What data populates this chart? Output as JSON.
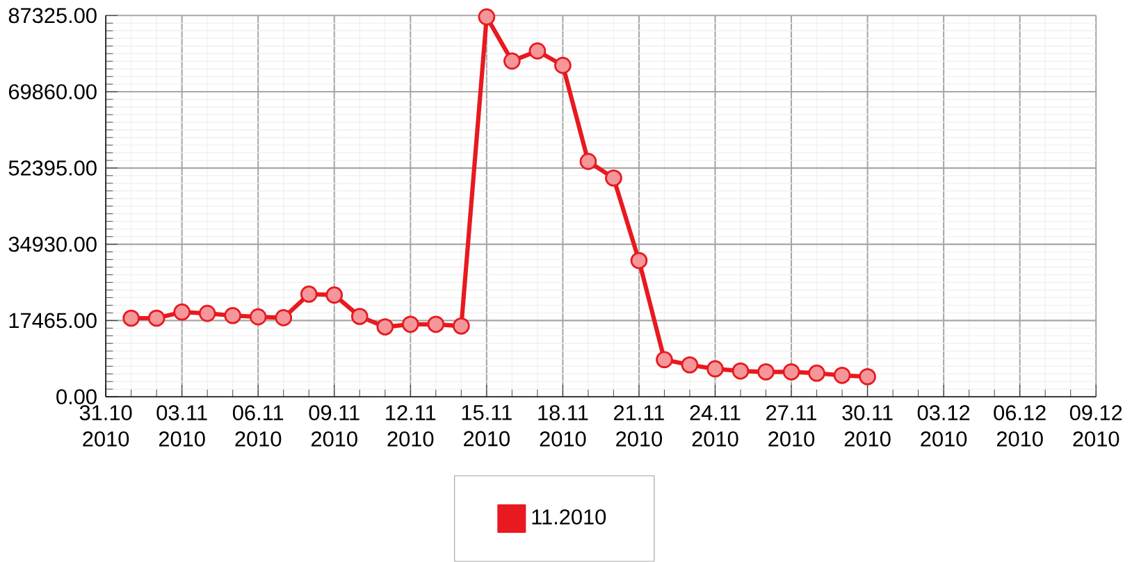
{
  "chart_data": {
    "type": "line",
    "x": [
      "2010-11-01",
      "2010-11-02",
      "2010-11-03",
      "2010-11-04",
      "2010-11-05",
      "2010-11-06",
      "2010-11-07",
      "2010-11-08",
      "2010-11-09",
      "2010-11-10",
      "2010-11-11",
      "2010-11-12",
      "2010-11-13",
      "2010-11-14",
      "2010-11-15",
      "2010-11-16",
      "2010-11-17",
      "2010-11-18",
      "2010-11-19",
      "2010-11-20",
      "2010-11-21",
      "2010-11-22",
      "2010-11-23",
      "2010-11-24",
      "2010-11-25",
      "2010-11-26",
      "2010-11-27",
      "2010-11-28",
      "2010-11-29",
      "2010-11-30"
    ],
    "series": [
      {
        "name": "11.2010",
        "color": "#e8191f",
        "values": [
          18000,
          18000,
          19400,
          19100,
          18600,
          18300,
          18100,
          23500,
          23300,
          18400,
          16000,
          16600,
          16600,
          16200,
          87000,
          76900,
          79200,
          75900,
          53900,
          50100,
          31200,
          8500,
          7300,
          6400,
          5900,
          5700,
          5700,
          5400,
          4900,
          4600
        ]
      }
    ],
    "xlim": [
      "2010-10-31",
      "2010-12-09"
    ],
    "xticks": [
      {
        "value": "2010-10-31",
        "label": "31.10 2010"
      },
      {
        "value": "2010-11-03",
        "label": "03.11 2010"
      },
      {
        "value": "2010-11-06",
        "label": "06.11 2010"
      },
      {
        "value": "2010-11-09",
        "label": "09.11 2010"
      },
      {
        "value": "2010-11-12",
        "label": "12.11 2010"
      },
      {
        "value": "2010-11-15",
        "label": "15.11 2010"
      },
      {
        "value": "2010-11-18",
        "label": "18.11 2010"
      },
      {
        "value": "2010-11-21",
        "label": "21.11 2010"
      },
      {
        "value": "2010-11-24",
        "label": "24.11 2010"
      },
      {
        "value": "2010-11-27",
        "label": "27.11 2010"
      },
      {
        "value": "2010-11-30",
        "label": "30.11 2010"
      },
      {
        "value": "2010-12-03",
        "label": "03.12 2010"
      },
      {
        "value": "2010-12-06",
        "label": "06.12 2010"
      },
      {
        "value": "2010-12-09",
        "label": "09.12 2010"
      }
    ],
    "ylim": [
      0,
      87325
    ],
    "yticks": [
      {
        "value": 0,
        "label": "0.00"
      },
      {
        "value": 17465,
        "label": "17465.00"
      },
      {
        "value": 34930,
        "label": "34930.00"
      },
      {
        "value": 52395,
        "label": "52395.00"
      },
      {
        "value": 69860,
        "label": "69860.00"
      },
      {
        "value": 87325,
        "label": "87325.00"
      }
    ],
    "grid": true,
    "legend": "bottom",
    "marker": "circle",
    "line_style": "solid"
  }
}
